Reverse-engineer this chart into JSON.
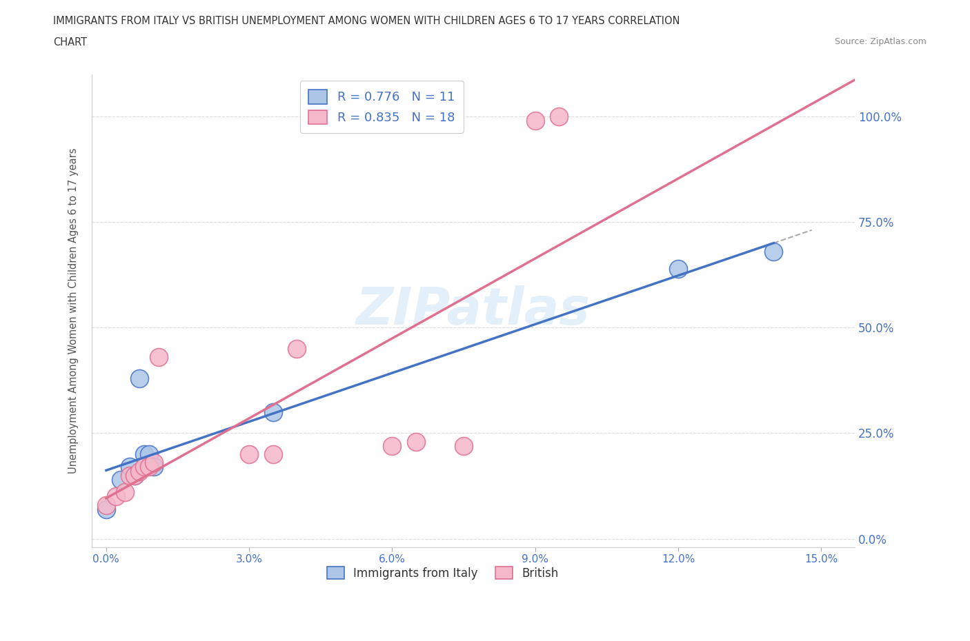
{
  "title_line1": "IMMIGRANTS FROM ITALY VS BRITISH UNEMPLOYMENT AMONG WOMEN WITH CHILDREN AGES 6 TO 17 YEARS CORRELATION",
  "title_line2": "CHART",
  "source_text": "Source: ZipAtlas.com",
  "ylabel": "Unemployment Among Women with Children Ages 6 to 17 years",
  "watermark": "ZIPatlas",
  "legend_r1": "R = 0.776",
  "legend_n1": "N = 11",
  "legend_r2": "R = 0.835",
  "legend_n2": "N = 18",
  "italy_scatter_color": "#adc6e8",
  "british_scatter_color": "#f5b8cb",
  "italy_border_color": "#4472c4",
  "british_border_color": "#e07090",
  "italy_line_color": "#4472c4",
  "british_line_color": "#e07090",
  "background_color": "#ffffff",
  "grid_color": "#cccccc",
  "ytick_color": "#4472c4",
  "xtick_color": "#4472c4",
  "italy_x": [
    0.0,
    0.003,
    0.005,
    0.006,
    0.007,
    0.008,
    0.009,
    0.01,
    0.035,
    0.12,
    0.14
  ],
  "italy_y": [
    0.07,
    0.14,
    0.17,
    0.15,
    0.38,
    0.2,
    0.2,
    0.17,
    0.3,
    0.64,
    0.68
  ],
  "british_x": [
    0.0,
    0.002,
    0.004,
    0.005,
    0.006,
    0.007,
    0.008,
    0.009,
    0.01,
    0.011,
    0.03,
    0.035,
    0.04,
    0.06,
    0.065,
    0.075,
    0.09,
    0.095
  ],
  "british_y": [
    0.08,
    0.1,
    0.11,
    0.15,
    0.15,
    0.16,
    0.17,
    0.17,
    0.18,
    0.43,
    0.2,
    0.2,
    0.45,
    0.22,
    0.23,
    0.22,
    0.99,
    1.0
  ],
  "xlim_min": -0.003,
  "xlim_max": 0.157,
  "ylim_min": -0.02,
  "ylim_max": 1.1,
  "xtick_vals": [
    0.0,
    0.03,
    0.06,
    0.09,
    0.12,
    0.15
  ],
  "ytick_vals": [
    0.0,
    0.25,
    0.5,
    0.75,
    1.0
  ],
  "legend_bottom_labels": [
    "Immigrants from Italy",
    "British"
  ]
}
